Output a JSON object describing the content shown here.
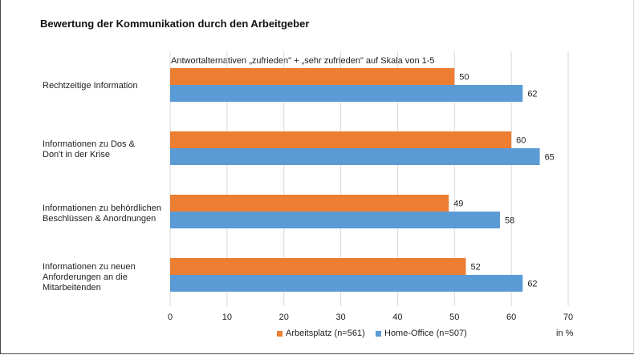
{
  "chart_data": {
    "type": "bar",
    "orientation": "horizontal",
    "title": "Bewertung der Kommunikation durch den Arbeitgeber",
    "subtitle": "Antwortalternativen „zufrieden\" + „sehr zufrieden\" auf Skala von 1-5",
    "categories": [
      "Rechtzeitige Information",
      "Informationen zu Dos & Don't in der Krise",
      "Informationen zu behördlichen Beschlüssen & Anordnungen",
      "Informationen zu neuen Anforderungen an die Mitarbeitenden"
    ],
    "series": [
      {
        "name": "Arbeitsplatz (n=561)",
        "color": "#ED7D31",
        "values": [
          50,
          60,
          49,
          52
        ]
      },
      {
        "name": "Home-Office (n=507)",
        "color": "#5B9BD5",
        "values": [
          62,
          65,
          58,
          62
        ]
      }
    ],
    "xlim": [
      0,
      70
    ],
    "xticks": [
      "0",
      "10",
      "20",
      "30",
      "40",
      "50",
      "60",
      "70"
    ],
    "xlabel": "in %",
    "grid": true,
    "legend": "bottom"
  },
  "labels": {
    "cat0": "Rechtzeitige Information",
    "cat1_l1": "Informationen  zu Dos &",
    "cat1_l2": "Don't in der Krise",
    "cat2_l1": "Informationen  zu behördlichen",
    "cat2_l2": "Beschlüssen  & Anordnungen",
    "cat3_l1": "Informationen  zu neuen",
    "cat3_l2": "Anforderungen  an die",
    "cat3_l3": "Mitarbeitenden"
  }
}
